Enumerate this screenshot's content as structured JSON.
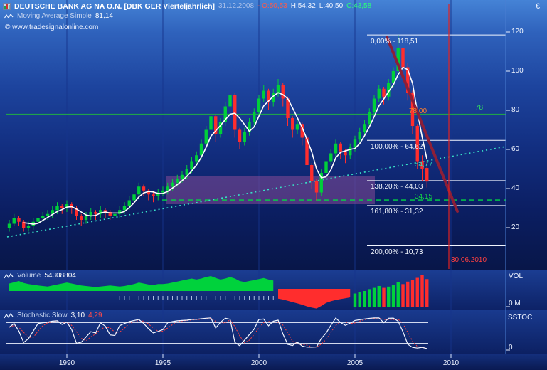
{
  "header": {
    "title": "DEUTSCHE BANK AG NA O.N. [DBK GER  Vierteljährlich]",
    "date": "31.12.2008",
    "open_label": "- O:50,53",
    "high_label": "H:54,32",
    "low_label": "L:40,50",
    "close_label": "C:43,58"
  },
  "watermark": "© www.tradesignalonline.com",
  "indicators": {
    "ma_label": "Moving Average Simple",
    "ma_value": "81,14",
    "volume_label": "Volume",
    "volume_value": "54308804",
    "stoch_label": "Stochastic Slow",
    "stoch_k": "3,10",
    "stoch_d": "4,29"
  },
  "annotations": {
    "fib": [
      {
        "label": "0,00% - 118,51"
      },
      {
        "label": "100,00% - 64,62"
      },
      {
        "label": "138,20% - 44,03"
      },
      {
        "label": "161,80% - 31,32"
      },
      {
        "label": "200,00% - 10,73"
      }
    ],
    "level78_mid": "78,00",
    "level78_right": "78",
    "ma_end_value": "54,77",
    "target_value": "34,15",
    "vline_date": "30.06.2010"
  },
  "axes": {
    "currency": "€",
    "price_ticks": [
      "120",
      "100",
      "80",
      "60",
      "40",
      "20"
    ],
    "years": [
      "1990",
      "1995",
      "2000",
      "2005",
      "2010"
    ],
    "right_labels": {
      "vol": "VOL",
      "vol_zero": "0 M",
      "stoch": "SSTOC",
      "stoch_zero": "0"
    }
  },
  "chart_data": {
    "type": "candlestick",
    "title": "Deutsche Bank AG quarterly chart with SMA, Fibonacci levels, Volume and Stochastic Slow",
    "symbol": "DBK GER",
    "period": "Vierteljährlich (quarterly)",
    "x_start_year": 1987,
    "periods_per_year": 4,
    "x_axis_years": [
      1990,
      1995,
      2000,
      2005,
      2010
    ],
    "price_axis": {
      "ticks": [
        120,
        100,
        80,
        60,
        40,
        20
      ],
      "currency": "EUR",
      "ylim": [
        0,
        130
      ]
    },
    "last_quote": {
      "date": "31.12.2008",
      "open": 50.53,
      "high": 54.32,
      "low": 40.5,
      "close": 43.58
    },
    "moving_average": {
      "name": "Moving Average Simple",
      "display_value": 81.14,
      "end_value_label": 54.77
    },
    "levels": {
      "fib": [
        {
          "pct": "0,00%",
          "price": 118.51
        },
        {
          "pct": "100,00%",
          "price": 64.62
        },
        {
          "pct": "138,20%",
          "price": 44.03
        },
        {
          "pct": "161,80%",
          "price": 31.32
        },
        {
          "pct": "200,00%",
          "price": 10.73
        }
      ],
      "horizontal_green": 78,
      "dashed_green": 34.15,
      "vertical_date": "30.06.2010"
    },
    "candles": [
      [
        20,
        24,
        18,
        22
      ],
      [
        22,
        27,
        21,
        25
      ],
      [
        25,
        26,
        21,
        23
      ],
      [
        23,
        24,
        18,
        20
      ],
      [
        20,
        23,
        18,
        21
      ],
      [
        21,
        25,
        19,
        23
      ],
      [
        23,
        27,
        21,
        25
      ],
      [
        25,
        28,
        23,
        26
      ],
      [
        26,
        29,
        24,
        27
      ],
      [
        27,
        31,
        25,
        29
      ],
      [
        29,
        33,
        27,
        31
      ],
      [
        31,
        32,
        27,
        30
      ],
      [
        30,
        34,
        28,
        32
      ],
      [
        32,
        33,
        27,
        30
      ],
      [
        30,
        31,
        24,
        26
      ],
      [
        26,
        27,
        21,
        24
      ],
      [
        24,
        28,
        22,
        26
      ],
      [
        26,
        30,
        24,
        28
      ],
      [
        28,
        29,
        24,
        27
      ],
      [
        27,
        31,
        25,
        29
      ],
      [
        29,
        30,
        25,
        28
      ],
      [
        28,
        29,
        24,
        26
      ],
      [
        26,
        29,
        24,
        27
      ],
      [
        27,
        31,
        25,
        29
      ],
      [
        29,
        33,
        27,
        31
      ],
      [
        31,
        36,
        29,
        34
      ],
      [
        34,
        39,
        32,
        37
      ],
      [
        37,
        43,
        35,
        41
      ],
      [
        41,
        42,
        36,
        39
      ],
      [
        39,
        40,
        34,
        37
      ],
      [
        37,
        38,
        33,
        36
      ],
      [
        36,
        40,
        34,
        38
      ],
      [
        38,
        41,
        36,
        39
      ],
      [
        39,
        43,
        37,
        41
      ],
      [
        41,
        45,
        39,
        43
      ],
      [
        43,
        47,
        41,
        45
      ],
      [
        45,
        49,
        43,
        47
      ],
      [
        47,
        52,
        45,
        50
      ],
      [
        50,
        56,
        48,
        54
      ],
      [
        54,
        59,
        52,
        57
      ],
      [
        57,
        65,
        55,
        63
      ],
      [
        63,
        72,
        61,
        70
      ],
      [
        70,
        79,
        68,
        77
      ],
      [
        77,
        78,
        64,
        68
      ],
      [
        68,
        76,
        66,
        74
      ],
      [
        74,
        84,
        72,
        82
      ],
      [
        82,
        91,
        80,
        88
      ],
      [
        88,
        89,
        66,
        70
      ],
      [
        70,
        71,
        60,
        64
      ],
      [
        64,
        71,
        62,
        69
      ],
      [
        69,
        76,
        67,
        74
      ],
      [
        74,
        81,
        72,
        79
      ],
      [
        79,
        88,
        77,
        86
      ],
      [
        86,
        93,
        84,
        90
      ],
      [
        90,
        91,
        80,
        84
      ],
      [
        84,
        91,
        82,
        89
      ],
      [
        89,
        96,
        87,
        93
      ],
      [
        93,
        94,
        82,
        86
      ],
      [
        86,
        87,
        72,
        76
      ],
      [
        76,
        77,
        66,
        70
      ],
      [
        70,
        75,
        68,
        73
      ],
      [
        73,
        74,
        62,
        66
      ],
      [
        66,
        67,
        48,
        52
      ],
      [
        52,
        53,
        40,
        44
      ],
      [
        44,
        45,
        34,
        38
      ],
      [
        38,
        50,
        36,
        48
      ],
      [
        48,
        56,
        46,
        54
      ],
      [
        54,
        60,
        52,
        58
      ],
      [
        58,
        65,
        56,
        63
      ],
      [
        63,
        64,
        55,
        59
      ],
      [
        59,
        60,
        53,
        57
      ],
      [
        57,
        63,
        55,
        61
      ],
      [
        61,
        67,
        59,
        65
      ],
      [
        65,
        71,
        63,
        69
      ],
      [
        69,
        75,
        67,
        73
      ],
      [
        73,
        81,
        71,
        79
      ],
      [
        79,
        88,
        77,
        86
      ],
      [
        86,
        93,
        84,
        91
      ],
      [
        91,
        92,
        83,
        87
      ],
      [
        87,
        96,
        85,
        94
      ],
      [
        94,
        102,
        92,
        100
      ],
      [
        100,
        118.51,
        98,
        112
      ],
      [
        112,
        114,
        98,
        102
      ],
      [
        102,
        104,
        85,
        89
      ],
      [
        89,
        90,
        68,
        72
      ],
      [
        72,
        73,
        50,
        54
      ],
      [
        54,
        57,
        44,
        50
      ],
      [
        50.53,
        54.32,
        40.5,
        43.58
      ]
    ],
    "volume": [
      30,
      35,
      40,
      32,
      28,
      25,
      22,
      20,
      18,
      22,
      26,
      30,
      34,
      30,
      26,
      22,
      20,
      18,
      16,
      18,
      20,
      22,
      20,
      18,
      20,
      24,
      28,
      34,
      30,
      26,
      24,
      28,
      28,
      30,
      34,
      38,
      42,
      46,
      50,
      46,
      50,
      56,
      60,
      52,
      46,
      50,
      56,
      50,
      40,
      36,
      40,
      44,
      48,
      52,
      46,
      42,
      46,
      50,
      56,
      62,
      68,
      74,
      82,
      88,
      92,
      80,
      66,
      58,
      52,
      48,
      44,
      40,
      42,
      46,
      50,
      56,
      60,
      66,
      60,
      64,
      70,
      78,
      72,
      80,
      86,
      92,
      100,
      88
    ],
    "volume_last_total": 54308804,
    "stochastic": {
      "name": "Stochastic Slow",
      "k_last": 3.1,
      "d_last": 4.29,
      "upper_band": 80,
      "lower_band": 20,
      "range": [
        0,
        100
      ]
    }
  }
}
